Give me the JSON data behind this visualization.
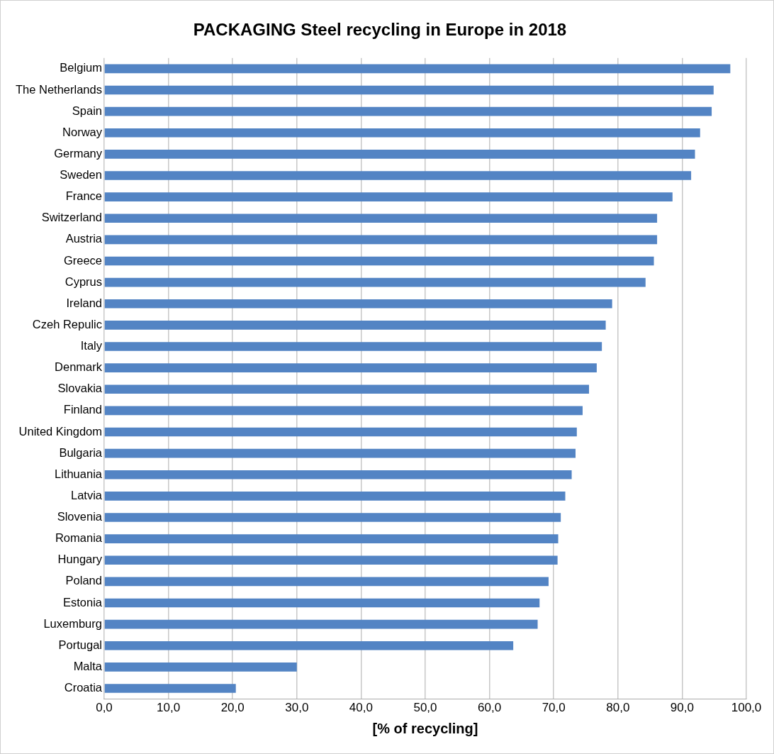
{
  "chart_data": {
    "type": "bar",
    "orientation": "horizontal",
    "title": "PACKAGING Steel recycling in Europe in 2018",
    "xlabel": "[% of recycling]",
    "categories": [
      "Belgium",
      "The Netherlands",
      "Spain",
      "Norway",
      "Germany",
      "Sweden",
      "France",
      "Switzerland",
      "Austria",
      "Greece",
      "Cyprus",
      "Ireland",
      "Czeh Repulic",
      "Italy",
      "Denmark",
      "Slovakia",
      "Finland",
      "United Kingdom",
      "Bulgaria",
      "Lithuania",
      "Latvia",
      "Slovenia",
      "Romania",
      "Hungary",
      "Poland",
      "Estonia",
      "Luxemburg",
      "Portugal",
      "Malta",
      "Croatia"
    ],
    "values": [
      97.5,
      94.9,
      94.6,
      92.8,
      92.0,
      91.4,
      88.5,
      86.1,
      86.1,
      85.6,
      84.3,
      79.1,
      78.1,
      77.5,
      76.7,
      75.5,
      74.5,
      73.6,
      73.4,
      72.8,
      71.8,
      71.1,
      70.7,
      70.6,
      69.2,
      67.8,
      67.5,
      63.7,
      30.0,
      20.5
    ],
    "color": "#5384c4",
    "xlim": [
      0,
      100
    ],
    "xticks": [
      {
        "value": 0,
        "label": "0,0"
      },
      {
        "value": 10,
        "label": "10,0"
      },
      {
        "value": 20,
        "label": "20,0"
      },
      {
        "value": 30,
        "label": "30,0"
      },
      {
        "value": 40,
        "label": "40,0"
      },
      {
        "value": 50,
        "label": "50,0"
      },
      {
        "value": 60,
        "label": "60,0"
      },
      {
        "value": 70,
        "label": "70,0"
      },
      {
        "value": 80,
        "label": "80,0"
      },
      {
        "value": 90,
        "label": "90,0"
      },
      {
        "value": 100,
        "label": "100,0"
      }
    ],
    "grid": "x",
    "legend": false
  }
}
